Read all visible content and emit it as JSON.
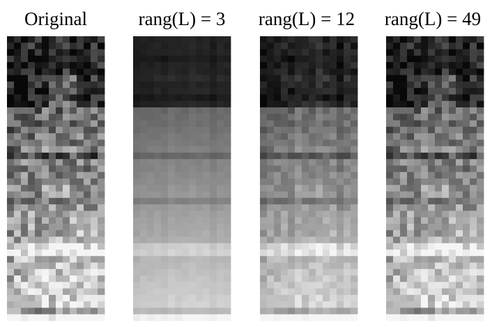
{
  "panels": [
    {
      "title": "Original"
    },
    {
      "title": "rang(L) = 3"
    },
    {
      "title": "rang(L) = 12"
    },
    {
      "title": "rang(L) = 49"
    }
  ]
}
